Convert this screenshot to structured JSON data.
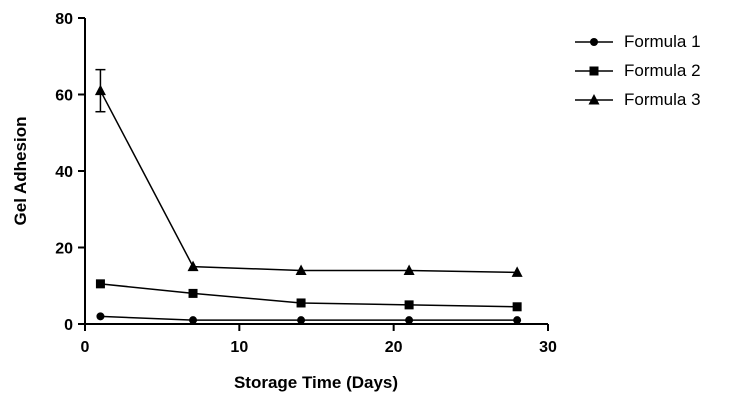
{
  "chart_data": {
    "type": "line",
    "title": "",
    "xlabel": "Storage Time (Days)",
    "ylabel": "Gel Adhesion",
    "xlim": [
      0,
      30
    ],
    "ylim": [
      0,
      80
    ],
    "xticks": [
      0,
      10,
      20,
      30
    ],
    "yticks": [
      0,
      20,
      40,
      60,
      80
    ],
    "grid": false,
    "legend_position": "right",
    "color": "#000000",
    "x": [
      1,
      7,
      14,
      21,
      28
    ],
    "series": [
      {
        "name": "Formula 1",
        "marker": "circle",
        "values": [
          2,
          1,
          1,
          1,
          1
        ],
        "errors": [
          0,
          0,
          0,
          0,
          0
        ]
      },
      {
        "name": "Formula 2",
        "marker": "square",
        "values": [
          10.5,
          8,
          5.5,
          5,
          4.5
        ],
        "errors": [
          0,
          0,
          0,
          0,
          0
        ]
      },
      {
        "name": "Formula 3",
        "marker": "triangle",
        "values": [
          61,
          15,
          14,
          14,
          13.5
        ],
        "errors": [
          5.5,
          0,
          0,
          0,
          0
        ]
      }
    ]
  }
}
